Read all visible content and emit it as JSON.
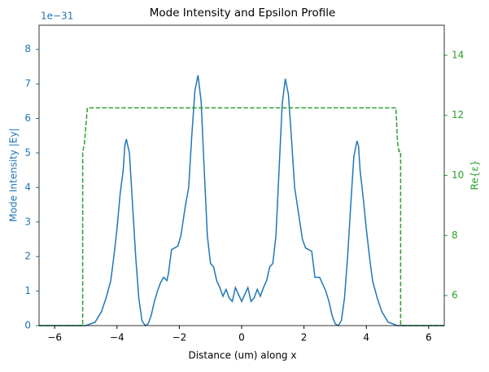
{
  "chart_data": {
    "type": "line",
    "title": "Mode Intensity and Epsilon Profile",
    "xlabel": "Distance (um) along x",
    "ylabel": "Mode Intensity |Ey|",
    "y2label": "Re{ε}",
    "y_offset_label": "1e−31",
    "xlim": [
      -6.5,
      6.5
    ],
    "xticks": [
      {
        "value": -6,
        "label": "−6"
      },
      {
        "value": -4,
        "label": "−4"
      },
      {
        "value": -2,
        "label": "−2"
      },
      0,
      2,
      4,
      6
    ],
    "ylim": [
      0,
      8.7
    ],
    "yticks": [
      0,
      1,
      2,
      3,
      4,
      5,
      6,
      7,
      8
    ],
    "y2lim": [
      5,
      15
    ],
    "y2ticks": [
      6,
      8,
      10,
      12,
      14
    ],
    "y_color": "#1f77b4",
    "y2_color": "#2ca02c",
    "series": [
      {
        "color": "#1f77b4",
        "line_style": "solid",
        "x": [
          -6.5,
          -5.0,
          -4.7,
          -4.5,
          -4.35,
          -4.2,
          -4.1,
          -4.0,
          -3.9,
          -3.8,
          -3.75,
          -3.7,
          -3.6,
          -3.5,
          -3.4,
          -3.3,
          -3.2,
          -3.1,
          -3.0,
          -2.9,
          -2.8,
          -2.7,
          -2.6,
          -2.5,
          -2.4,
          -2.35,
          -2.25,
          -2.15,
          -2.05,
          -1.95,
          -1.8,
          -1.7,
          -1.6,
          -1.5,
          -1.4,
          -1.3,
          -1.2,
          -1.1,
          -1.0,
          -0.9,
          -0.8,
          -0.7,
          -0.6,
          -0.5,
          -0.4,
          -0.3,
          -0.2,
          -0.1,
          0,
          0.1,
          0.2,
          0.3,
          0.4,
          0.5,
          0.6,
          0.7,
          0.8,
          0.9,
          1.0,
          1.1,
          1.2,
          1.3,
          1.4,
          1.5,
          1.6,
          1.7,
          1.8,
          1.95,
          2.05,
          2.15,
          2.25,
          2.35,
          2.5,
          2.6,
          2.7,
          2.8,
          2.9,
          3.0,
          3.1,
          3.2,
          3.3,
          3.4,
          3.5,
          3.6,
          3.7,
          3.75,
          3.8,
          3.9,
          4.0,
          4.1,
          4.2,
          4.35,
          4.5,
          4.7,
          5.0,
          6.5
        ],
        "values": [
          0,
          0,
          0.1,
          0.4,
          0.8,
          1.3,
          2.0,
          2.8,
          3.8,
          4.5,
          5.2,
          5.4,
          5.0,
          3.5,
          2.0,
          0.8,
          0.15,
          0,
          0.05,
          0.3,
          0.7,
          1.0,
          1.25,
          1.4,
          1.3,
          1.5,
          2.2,
          2.25,
          2.3,
          2.6,
          3.5,
          4.0,
          5.5,
          6.8,
          7.25,
          6.5,
          4.5,
          2.6,
          1.8,
          1.7,
          1.3,
          1.1,
          0.85,
          1.05,
          0.8,
          0.7,
          1.1,
          0.9,
          0.7,
          0.9,
          1.1,
          0.7,
          0.8,
          1.05,
          0.85,
          1.1,
          1.3,
          1.7,
          1.8,
          2.6,
          4.5,
          6.4,
          7.15,
          6.7,
          5.4,
          4.0,
          3.4,
          2.5,
          2.25,
          2.2,
          2.15,
          1.4,
          1.4,
          1.2,
          1.0,
          0.7,
          0.3,
          0.05,
          0,
          0.15,
          0.8,
          2.0,
          3.5,
          4.9,
          5.35,
          5.2,
          4.5,
          3.7,
          2.8,
          2.0,
          1.3,
          0.8,
          0.4,
          0.1,
          0,
          0
        ]
      },
      {
        "color": "#2ca02c",
        "line_style": "dashed",
        "axis": "y2",
        "x": [
          -6.5,
          -5.1,
          -5.1,
          -5.05,
          -4.95,
          4.95,
          5.0,
          5.05,
          5.1,
          5.1,
          6.5
        ],
        "values": [
          5,
          5,
          10.8,
          11.0,
          12.25,
          12.25,
          11.1,
          10.8,
          10.8,
          5,
          5
        ]
      }
    ]
  }
}
